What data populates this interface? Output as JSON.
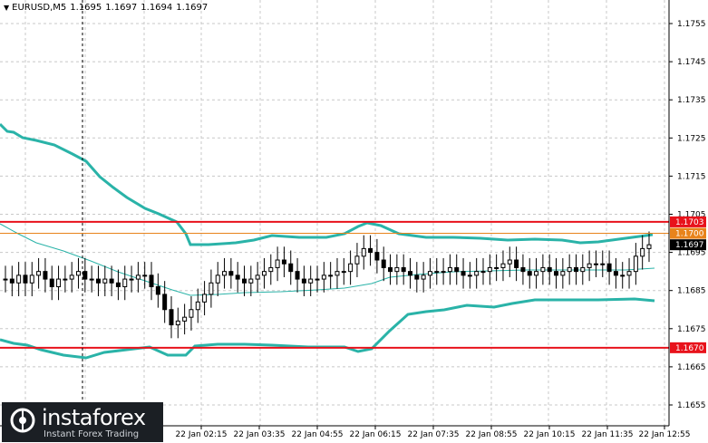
{
  "header": {
    "symbol": "EURUSD,M5",
    "open": "1.1695",
    "high": "1.1697",
    "low": "1.1694",
    "close": "1.1697"
  },
  "price_axis": {
    "ticks": [
      "1.1755",
      "1.1745",
      "1.1735",
      "1.1725",
      "1.1715",
      "1.1705",
      "1.1695",
      "1.1685",
      "1.1675",
      "1.1665",
      "1.1655"
    ]
  },
  "time_axis": {
    "ticks": [
      "22 Jan 02:15",
      "22 Jan 03:35",
      "22 Jan 04:55",
      "22 Jan 06:15",
      "22 Jan 07:35",
      "22 Jan 08:55",
      "22 Jan 10:15",
      "22 Jan 11:35",
      "22 Jan 12:55"
    ]
  },
  "levels": {
    "resistance": {
      "label": "1.1703",
      "value": 1.1703,
      "color": "#e8121b"
    },
    "current": {
      "label": "1.1700",
      "value": 1.17,
      "color": "#e8831b"
    },
    "bid": {
      "label": "1.1697",
      "value": 1.1697
    },
    "support": {
      "label": "1.1670",
      "value": 1.167,
      "color": "#e8121b"
    }
  },
  "colors": {
    "grid": "#c8c8c8",
    "bands": "#2ab3a8",
    "candles": "#000000",
    "resistance_line": "#e8121b"
  },
  "logo": {
    "name": "instaforex",
    "tagline": "Instant Forex Trading"
  },
  "chart_data": {
    "type": "line",
    "ylim": [
      1.165,
      1.1765
    ],
    "y_ticks": [
      1.1755,
      1.1745,
      1.1735,
      1.1725,
      1.1715,
      1.1705,
      1.1695,
      1.1685,
      1.1675,
      1.1665,
      1.1655
    ],
    "grid": true,
    "series": [
      {
        "values": [
          1.1688,
          1.1687,
          1.1689,
          1.1687,
          1.1689,
          1.169,
          1.1688,
          1.1686,
          1.1688,
          1.1688,
          1.1689,
          1.169,
          1.1688,
          1.1688,
          1.1687,
          1.1688,
          1.1687,
          1.1686,
          1.1688,
          1.1688,
          1.1689,
          1.1689,
          1.1686,
          1.1684,
          1.168,
          1.1676,
          1.1677,
          1.1678,
          1.168,
          1.1682,
          1.1684,
          1.1687,
          1.1689,
          1.169,
          1.1689,
          1.1688,
          1.1687,
          1.1688,
          1.1689,
          1.169,
          1.1691,
          1.1693,
          1.1692,
          1.169,
          1.1688,
          1.1687,
          1.1688,
          1.1688,
          1.1689,
          1.1689,
          1.169,
          1.169,
          1.1692,
          1.1694,
          1.1696,
          1.1695,
          1.1693,
          1.1691,
          1.169,
          1.1691,
          1.169,
          1.1689,
          1.1688,
          1.1689,
          1.169,
          1.169,
          1.169,
          1.1691,
          1.169,
          1.1689,
          1.1689,
          1.169,
          1.169,
          1.1691,
          1.1691,
          1.1692,
          1.1693,
          1.1691,
          1.169,
          1.1689,
          1.169,
          1.1691,
          1.169,
          1.1689,
          1.169,
          1.1691,
          1.169,
          1.1691,
          1.1692,
          1.1692,
          1.1692,
          1.169,
          1.1689,
          1.1689,
          1.169,
          1.1694,
          1.1696,
          1.1697
        ]
      }
    ]
  }
}
